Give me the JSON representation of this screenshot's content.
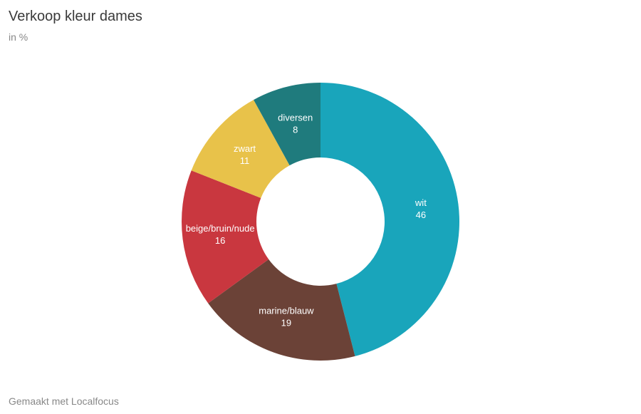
{
  "title": "Verkoop kleur dames",
  "subtitle": "in %",
  "footer": "Gemaakt met Localfocus",
  "chart": {
    "type": "donut",
    "background_color": "#ffffff",
    "outer_radius": 195,
    "inner_radius": 90,
    "label_radius": 142,
    "start_angle_deg": -90,
    "title_fontsize": 20,
    "subtitle_fontsize": 14,
    "label_fontsize": 13,
    "label_color": "#ffffff",
    "slices": [
      {
        "label": "wit",
        "value": 46,
        "color": "#19a5bb"
      },
      {
        "label": "marine/blauw",
        "value": 19,
        "color": "#6b4237"
      },
      {
        "label": "beige/bruin/nude",
        "value": 16,
        "color": "#c9373f"
      },
      {
        "label": "zwart",
        "value": 11,
        "color": "#e8c24a"
      },
      {
        "label": "diversen",
        "value": 8,
        "color": "#1f7b7d"
      }
    ]
  }
}
